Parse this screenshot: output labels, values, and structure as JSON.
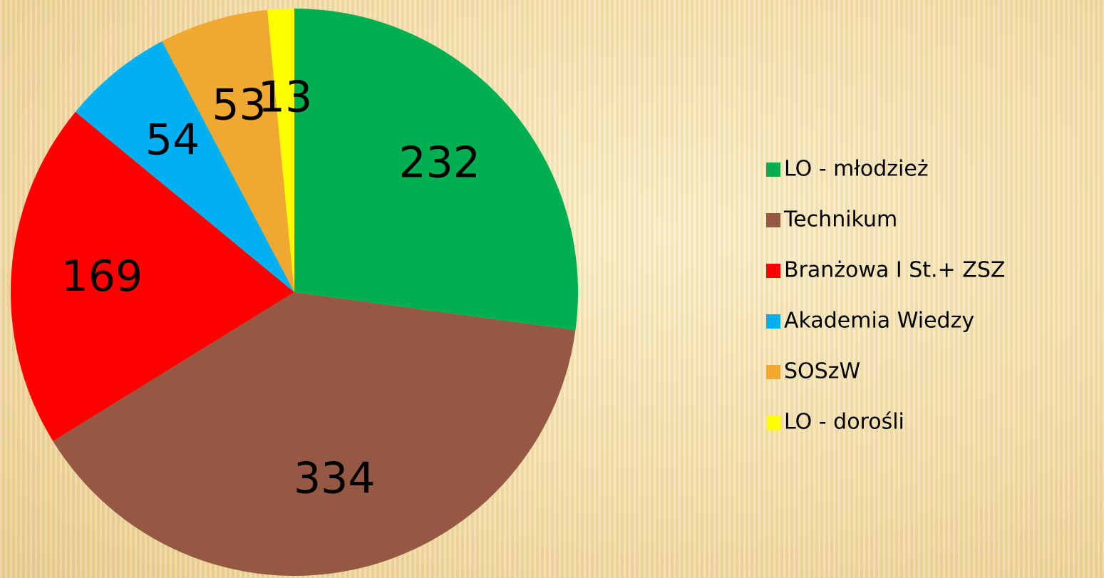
{
  "chart_data": {
    "type": "pie",
    "categories": [
      "LO - młodzież",
      "Technikum",
      "Branżowa I St.+ ZSZ",
      "Akademia Wiedzy",
      "SOSzW",
      "LO - dorośli"
    ],
    "values": [
      232,
      334,
      169,
      54,
      53,
      13
    ],
    "colors": [
      "#00b050",
      "#955843",
      "#ff0000",
      "#00b0f0",
      "#f0a830",
      "#ffff00"
    ],
    "legend": "right"
  }
}
